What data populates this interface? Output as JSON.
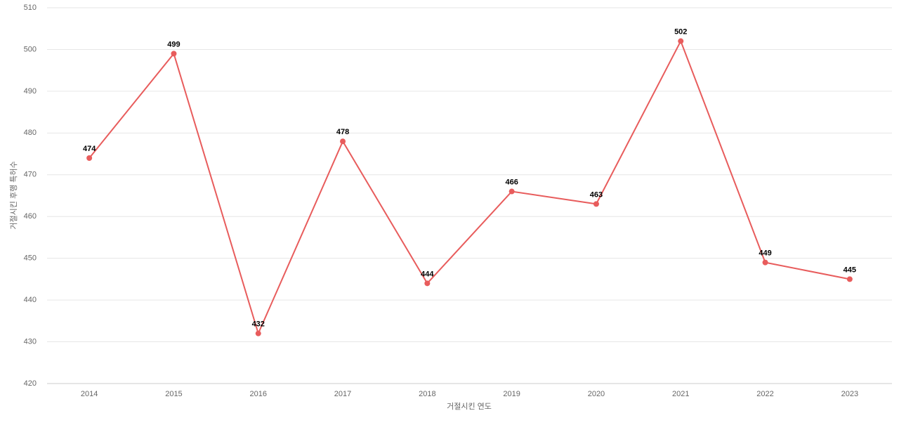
{
  "chart_data": {
    "type": "line",
    "x_label": "거절시킨 연도",
    "y_label": "거절시킨 후행 특허수",
    "categories": [
      "2014",
      "2015",
      "2016",
      "2017",
      "2018",
      "2019",
      "2020",
      "2021",
      "2022",
      "2023"
    ],
    "series": [
      {
        "color": "#e85c5c",
        "values": [
          474,
          499,
          432,
          478,
          444,
          466,
          463,
          502,
          449,
          445
        ]
      }
    ],
    "ylim": [
      420,
      510
    ],
    "yticks": [
      420,
      430,
      440,
      450,
      460,
      470,
      480,
      490,
      500,
      510
    ],
    "grid": true
  }
}
